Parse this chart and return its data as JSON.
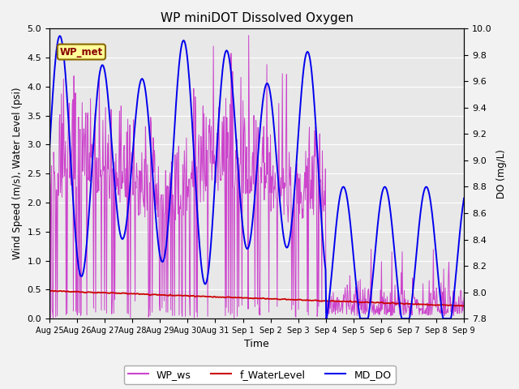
{
  "title": "WP miniDOT Dissolved Oxygen",
  "xlabel": "Time",
  "ylabel_left": "Wind Speed (m/s), Water Level (psi)",
  "ylabel_right": "DO (mg/L)",
  "ylim_left": [
    0.0,
    5.0
  ],
  "ylim_right": [
    7.8,
    10.0
  ],
  "yticks_left": [
    0.0,
    0.5,
    1.0,
    1.5,
    2.0,
    2.5,
    3.0,
    3.5,
    4.0,
    4.5,
    5.0
  ],
  "yticks_right": [
    7.8,
    8.0,
    8.2,
    8.4,
    8.6,
    8.8,
    9.0,
    9.2,
    9.4,
    9.6,
    9.8,
    10.0
  ],
  "xtick_labels": [
    "Aug 25",
    "Aug 26",
    "Aug 27",
    "Aug 28",
    "Aug 29",
    "Aug 30",
    "Aug 31",
    "Sep 1",
    "Sep 2",
    "Sep 3",
    "Sep 4",
    "Sep 5",
    "Sep 6",
    "Sep 7",
    "Sep 8",
    "Sep 9"
  ],
  "wp_ws_color": "#CC44CC",
  "f_waterlevel_color": "#CC0000",
  "md_do_color": "#0000EE",
  "annotation_text": "WP_met",
  "annotation_bg": "#FFFF99",
  "annotation_border": "#886600",
  "annotation_text_color": "#880000",
  "legend_labels": [
    "WP_ws",
    "f_WaterLevel",
    "MD_DO"
  ],
  "bg_color": "#E8E8E8",
  "grid_color": "#FFFFFF",
  "figsize": [
    6.4,
    4.8
  ],
  "dpi": 100
}
